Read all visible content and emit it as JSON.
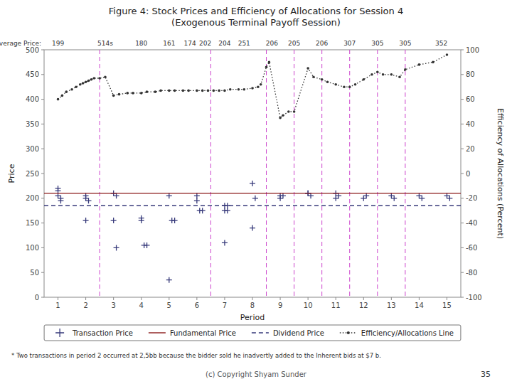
{
  "chart_data": {
    "type": "scatter",
    "title": "Figure 4: Stock Prices and Efficiency of Allocations for Session 4\n(Exogenous Terminal Payoff Session)",
    "x_label": "Period",
    "y_label": "Price",
    "y2_label": "Efficiency of Allocations (Percent)",
    "xlim": [
      0.5,
      15.5
    ],
    "ylim": [
      0,
      500
    ],
    "y2lim": [
      -100,
      100
    ],
    "xticks": [
      1,
      2,
      3,
      4,
      5,
      6,
      7,
      8,
      9,
      10,
      11,
      12,
      13,
      14,
      15
    ],
    "yticks": [
      0,
      50,
      100,
      150,
      200,
      250,
      300,
      350,
      400,
      450,
      500
    ],
    "y2ticks": [
      -100,
      -80,
      -60,
      -40,
      -20,
      0,
      20,
      40,
      60,
      80,
      100
    ],
    "grid": false,
    "legend": "bottom",
    "series": [
      {
        "name": "Transaction Price",
        "type": "scatter",
        "marker": "plus",
        "color": "#36397a",
        "x": [
          1.0,
          1.0,
          1.0,
          1.1,
          1.1,
          2.0,
          2.0,
          2.1,
          2.0,
          3.0,
          3.1,
          3.0,
          3.1,
          4.0,
          4.0,
          4.1,
          4.2,
          5.0,
          5.1,
          5.0,
          5.2,
          6.0,
          6.0,
          6.1,
          6.2,
          7.0,
          7.1,
          7.0,
          7.1,
          7.0,
          8.0,
          8.1,
          8.0,
          9.0,
          9.0,
          9.1,
          10.0,
          10.1,
          10.0,
          11.0,
          11.1,
          11.0,
          12.0,
          12.1,
          13.0,
          13.1,
          14.0,
          14.1,
          15.0,
          15.1
        ],
        "values": [
          220,
          215,
          205,
          200,
          195,
          205,
          200,
          195,
          155,
          210,
          205,
          155,
          100,
          160,
          155,
          105,
          105,
          205,
          155,
          35,
          155,
          205,
          195,
          175,
          175,
          185,
          185,
          175,
          175,
          110,
          140,
          200,
          230,
          205,
          200,
          205,
          210,
          205,
          210,
          200,
          205,
          210,
          200,
          205,
          205,
          200,
          205,
          200,
          205,
          200
        ]
      },
      {
        "name": "Fundamental Price",
        "type": "hline",
        "line_style": "solid",
        "color": "#8b1a1a",
        "values": [
          210
        ]
      },
      {
        "name": "Dividend Price",
        "type": "hline",
        "line_style": "dashed",
        "color": "#36397a",
        "values": [
          185
        ]
      },
      {
        "name": "Efficiency/Allocations Line",
        "type": "line",
        "line_style": "dotted",
        "marker": "dot",
        "color": "#333333",
        "axis": "y2",
        "x": [
          1.0,
          1.15,
          1.3,
          1.5,
          1.65,
          1.8,
          1.9,
          2.0,
          2.1,
          2.2,
          2.3,
          2.5,
          2.7,
          3.0,
          3.2,
          3.5,
          3.7,
          4.0,
          4.2,
          4.5,
          4.7,
          5.0,
          5.2,
          5.5,
          5.7,
          6.0,
          6.2,
          6.4,
          6.6,
          6.8,
          7.0,
          7.2,
          7.5,
          7.7,
          8.0,
          8.2,
          8.3,
          8.5,
          8.6,
          9.0,
          9.1,
          9.3,
          9.5,
          10.0,
          10.2,
          10.5,
          10.7,
          11.0,
          11.3,
          11.5,
          11.7,
          12.0,
          12.3,
          12.5,
          12.7,
          13.0,
          13.3,
          13.5,
          14.0,
          14.5,
          15.0
        ],
        "values": [
          60,
          63,
          66,
          68,
          70,
          72,
          73,
          74,
          75,
          76,
          77,
          77,
          78,
          63,
          64,
          65,
          65,
          65,
          66,
          66,
          67,
          67,
          67,
          67,
          67,
          67,
          67,
          67,
          67,
          67,
          67,
          68,
          68,
          68,
          69,
          70,
          72,
          86,
          90,
          45,
          47,
          50,
          50,
          85,
          78,
          76,
          74,
          72,
          70,
          70,
          72,
          76,
          80,
          82,
          80,
          80,
          78,
          84,
          88,
          90,
          96
        ]
      }
    ],
    "vertical_lines": {
      "x": [
        2.5,
        6.5,
        8.5,
        9.5,
        10.5,
        11.5,
        12.5,
        13.5
      ],
      "color": "#cc44cc",
      "line_style": "dashed"
    },
    "avg_price_labels": {
      "title": "Average Price:",
      "x": [
        1.0,
        2.7,
        4.0,
        5.0,
        5.75,
        6.3,
        7.0,
        7.7,
        8.7,
        9.5,
        10.5,
        11.5,
        12.5,
        13.5,
        14.8
      ],
      "labels": [
        "199",
        "514s",
        "180",
        "161",
        "174",
        "202",
        "204",
        "251",
        "206",
        "205",
        "206",
        "307",
        "305",
        "305",
        "352"
      ]
    },
    "footnote": "* Two transactions in period 2 occurred at 2,5bb because the bidder sold he  inadvertly added to the Inherent bids at $7 b.",
    "copyright": "(c) Copyright Shyam Sunder",
    "page_number": "35"
  }
}
